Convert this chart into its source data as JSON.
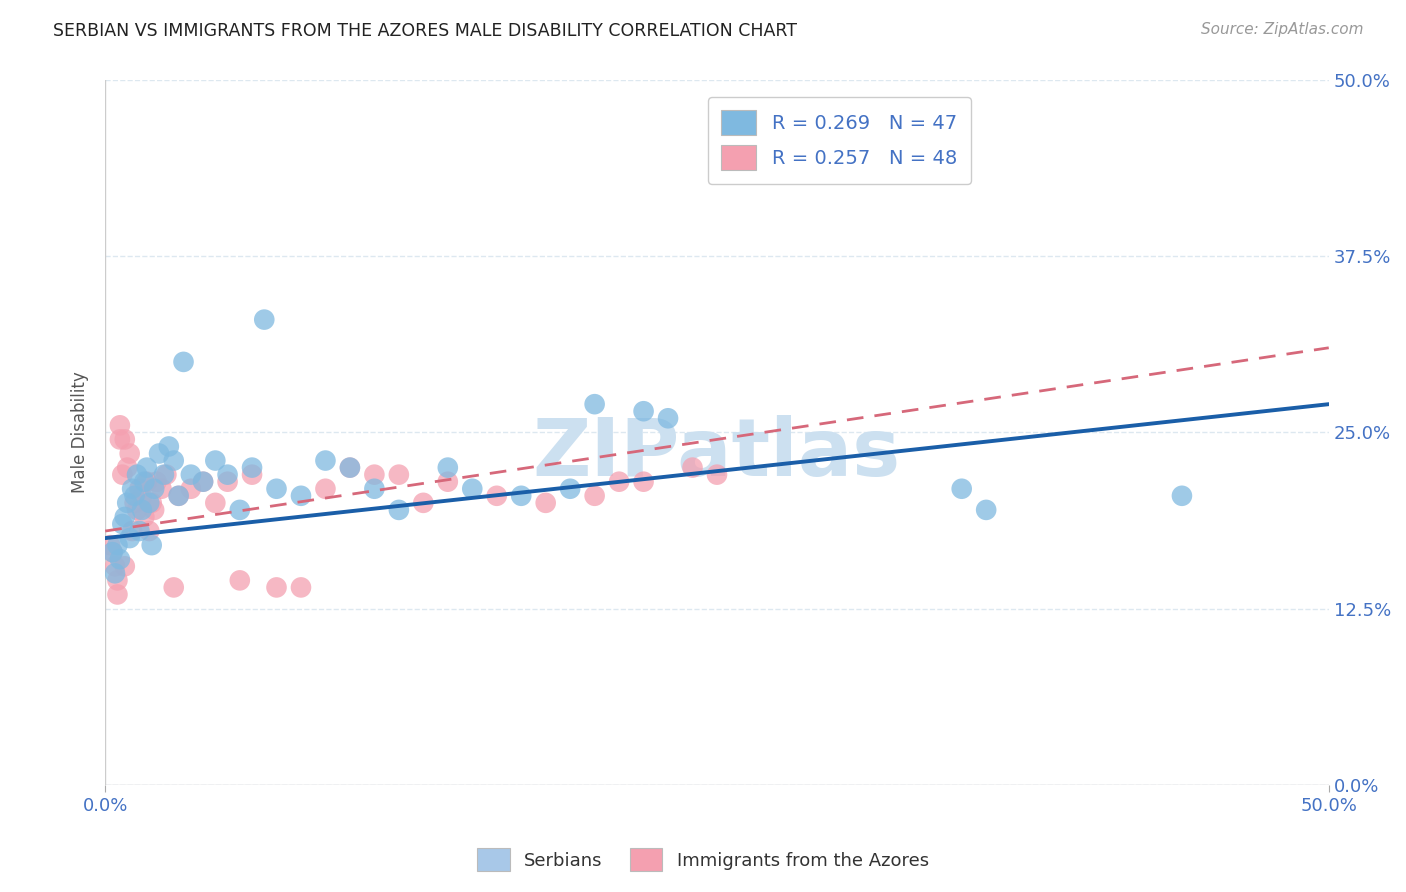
{
  "title": "SERBIAN VS IMMIGRANTS FROM THE AZORES MALE DISABILITY CORRELATION CHART",
  "source": "Source: ZipAtlas.com",
  "ylabel": "Male Disability",
  "ytick_labels": [
    "0.0%",
    "12.5%",
    "25.0%",
    "37.5%",
    "50.0%"
  ],
  "ytick_values": [
    0.0,
    12.5,
    25.0,
    37.5,
    50.0
  ],
  "xlim": [
    0.0,
    50.0
  ],
  "ylim": [
    0.0,
    50.0
  ],
  "legend_entries": [
    {
      "label": "R = 0.269   N = 47",
      "color": "#a8c8e8"
    },
    {
      "label": "R = 0.257   N = 48",
      "color": "#f4a0b0"
    }
  ],
  "footer_labels": [
    "Serbians",
    "Immigrants from the Azores"
  ],
  "footer_colors": [
    "#a8c8e8",
    "#f4a0b0"
  ],
  "serbian_x": [
    0.3,
    0.4,
    0.5,
    0.6,
    0.7,
    0.8,
    0.9,
    1.0,
    1.1,
    1.2,
    1.3,
    1.4,
    1.5,
    1.6,
    1.7,
    1.8,
    1.9,
    2.0,
    2.2,
    2.4,
    2.6,
    2.8,
    3.0,
    3.5,
    4.0,
    4.5,
    5.0,
    5.5,
    6.0,
    7.0,
    8.0,
    9.0,
    10.0,
    11.0,
    12.0,
    14.0,
    15.0,
    17.0,
    19.0,
    20.0,
    22.0,
    23.0,
    35.0,
    36.0,
    44.0,
    3.2,
    6.5
  ],
  "serbian_y": [
    16.5,
    15.0,
    17.0,
    16.0,
    18.5,
    19.0,
    20.0,
    17.5,
    21.0,
    20.5,
    22.0,
    18.0,
    19.5,
    21.5,
    22.5,
    20.0,
    17.0,
    21.0,
    23.5,
    22.0,
    24.0,
    23.0,
    20.5,
    22.0,
    21.5,
    23.0,
    22.0,
    19.5,
    22.5,
    21.0,
    20.5,
    23.0,
    22.5,
    21.0,
    19.5,
    22.5,
    21.0,
    20.5,
    21.0,
    27.0,
    26.5,
    26.0,
    21.0,
    19.5,
    20.5,
    30.0,
    33.0
  ],
  "azores_x": [
    0.2,
    0.3,
    0.4,
    0.5,
    0.6,
    0.7,
    0.8,
    0.9,
    1.0,
    1.1,
    1.2,
    1.3,
    1.4,
    1.5,
    1.6,
    1.7,
    1.8,
    1.9,
    2.0,
    2.1,
    2.3,
    2.5,
    2.8,
    3.0,
    3.5,
    4.0,
    4.5,
    5.0,
    5.5,
    6.0,
    7.0,
    8.0,
    9.0,
    10.0,
    11.0,
    13.0,
    14.0,
    16.0,
    18.0,
    20.0,
    21.0,
    22.0,
    24.0,
    25.0,
    0.5,
    0.6,
    0.8,
    12.0
  ],
  "azores_y": [
    17.0,
    16.5,
    15.5,
    14.5,
    25.5,
    22.0,
    15.5,
    22.5,
    23.5,
    18.0,
    20.0,
    19.5,
    21.0,
    20.5,
    19.0,
    21.5,
    18.0,
    20.0,
    19.5,
    21.5,
    21.0,
    22.0,
    14.0,
    20.5,
    21.0,
    21.5,
    20.0,
    21.5,
    14.5,
    22.0,
    14.0,
    14.0,
    21.0,
    22.5,
    22.0,
    20.0,
    21.5,
    20.5,
    20.0,
    20.5,
    21.5,
    21.5,
    22.5,
    22.0,
    13.5,
    24.5,
    24.5,
    22.0
  ],
  "blue_color": "#7fb9e0",
  "pink_color": "#f4a0b0",
  "blue_line_color": "#1a5ea8",
  "pink_line_color": "#d6687a",
  "blue_line_start_y": 17.5,
  "blue_line_end_y": 27.0,
  "pink_line_start_y": 18.0,
  "pink_line_end_y": 31.0,
  "watermark": "ZIPatlas",
  "watermark_color": "#cce0f0",
  "background_color": "#ffffff",
  "grid_color": "#dde8f0"
}
